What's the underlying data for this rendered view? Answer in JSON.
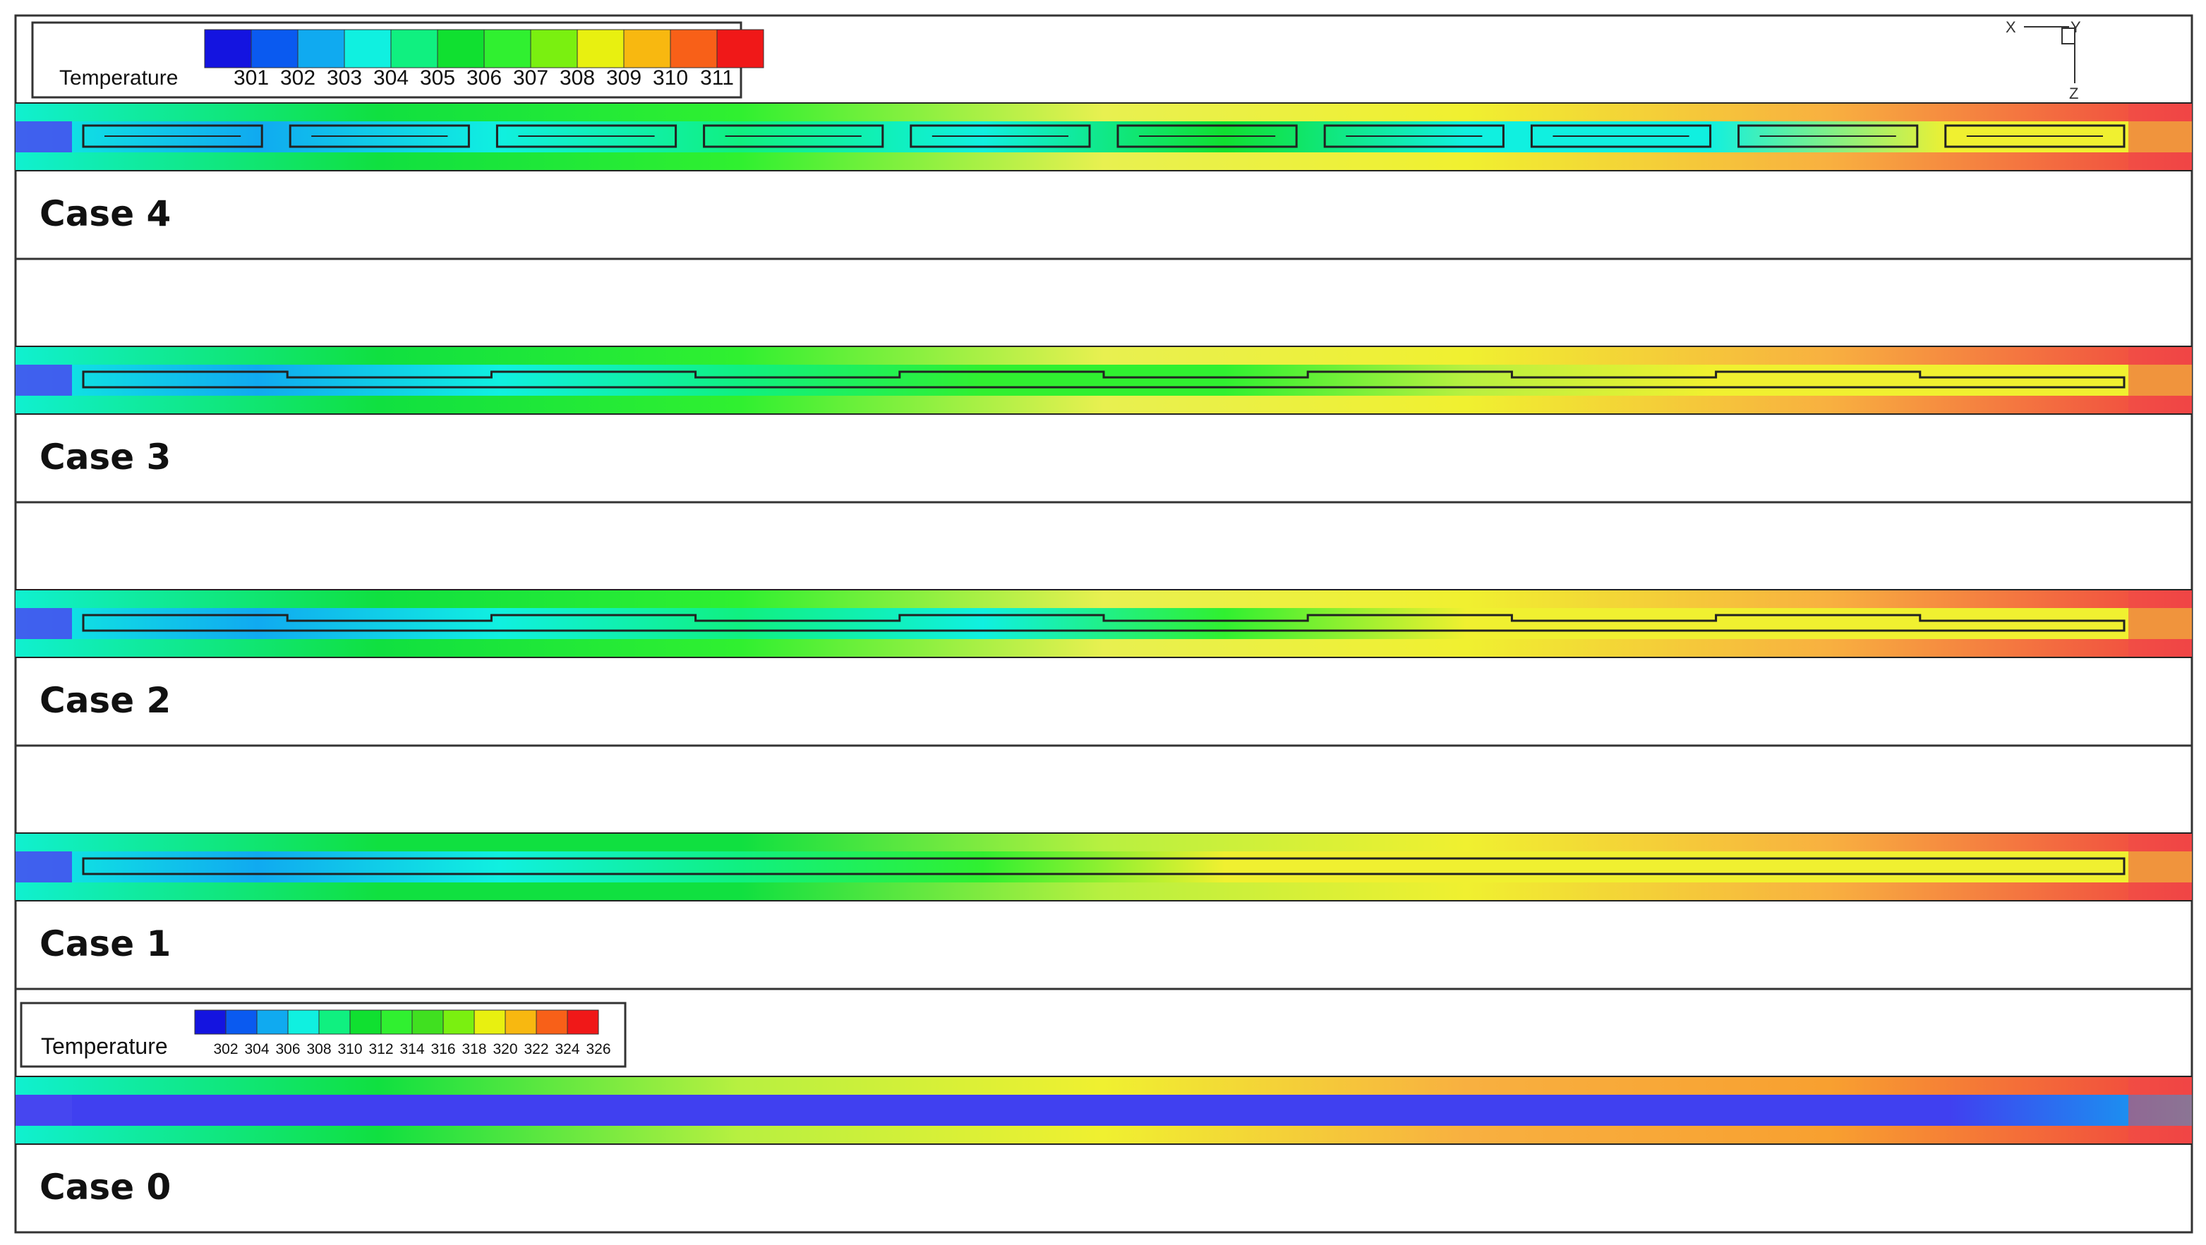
{
  "legends": [
    {
      "title": "Temperature",
      "labels": [
        "301",
        "302",
        "303",
        "304",
        "305",
        "306",
        "307",
        "308",
        "309",
        "310",
        "311"
      ],
      "colors": [
        "#1414e0",
        "#0a5af0",
        "#10aaf0",
        "#10f0e0",
        "#10f080",
        "#10e030",
        "#30f030",
        "#7af010",
        "#e8f010",
        "#f8b810",
        "#f86018",
        "#f01818"
      ]
    },
    {
      "title": "Temperature",
      "labels": [
        "302",
        "304",
        "306",
        "308",
        "310",
        "312",
        "314",
        "316",
        "318",
        "320",
        "322",
        "324",
        "326"
      ],
      "colors": [
        "#1414e0",
        "#0a5af0",
        "#10aaf0",
        "#10f0e0",
        "#10f080",
        "#10e030",
        "#30f030",
        "#40e020",
        "#7af010",
        "#e8f010",
        "#f8b810",
        "#f86018",
        "#f01818"
      ]
    }
  ],
  "axes": {
    "x": "X",
    "y": "Y",
    "z": "Z"
  },
  "cases": [
    {
      "label": "Case 4",
      "baffle": "segments",
      "outer": [
        "#10f0d0",
        "#10e040",
        "#30f030",
        "#e8f050",
        "#f0f030",
        "#f8b040",
        "#f04040"
      ],
      "inner": [
        "#10f0e0",
        "#10aaf0",
        "#10f0e0",
        "#10f080",
        "#10f0e0",
        "#10e030",
        "#10f0e0",
        "#10f0e0",
        "#f0f030",
        "#f0f030"
      ]
    },
    {
      "label": "Case 3",
      "baffle": "zigzag",
      "outer": [
        "#10f0d0",
        "#10e040",
        "#30f030",
        "#e8f050",
        "#f0f030",
        "#f8b040",
        "#f04040"
      ],
      "inner": [
        "#10f0e0",
        "#10aaf0",
        "#10f0e0",
        "#10f080",
        "#30f030",
        "#30f030",
        "#b8f040",
        "#f0f030",
        "#f0f030",
        "#f0f030"
      ]
    },
    {
      "label": "Case 2",
      "baffle": "zigzag",
      "outer": [
        "#10f0d0",
        "#10e040",
        "#30f030",
        "#e8f050",
        "#f0f030",
        "#f8b040",
        "#f04040"
      ],
      "inner": [
        "#10f0e0",
        "#10aaf0",
        "#10f0e0",
        "#10f080",
        "#10f0e0",
        "#30f030",
        "#f0f030",
        "#f0f030",
        "#f0f030",
        "#f0f030"
      ]
    },
    {
      "label": "Case 1",
      "baffle": "single",
      "outer": [
        "#10f0d0",
        "#10e040",
        "#10e040",
        "#b8f040",
        "#f0f030",
        "#f8b040",
        "#f04040"
      ],
      "inner": [
        "#10f0e0",
        "#10aaf0",
        "#10f0e0",
        "#10f080",
        "#30f030",
        "#f0f030",
        "#f0f030",
        "#f0f030",
        "#f0f030",
        "#f0f030"
      ]
    },
    {
      "label": "Case 0",
      "baffle": "none",
      "outer": [
        "#10f0d0",
        "#10e040",
        "#b8f040",
        "#f0f030",
        "#f8b040",
        "#f8a030",
        "#f04040"
      ],
      "inner": [
        "#4040f0",
        "#4040f0",
        "#4040f0",
        "#4040f0",
        "#4040f0",
        "#4040f0",
        "#4040f0",
        "#4040f0",
        "#4040f0",
        "#10aaf0"
      ]
    }
  ]
}
